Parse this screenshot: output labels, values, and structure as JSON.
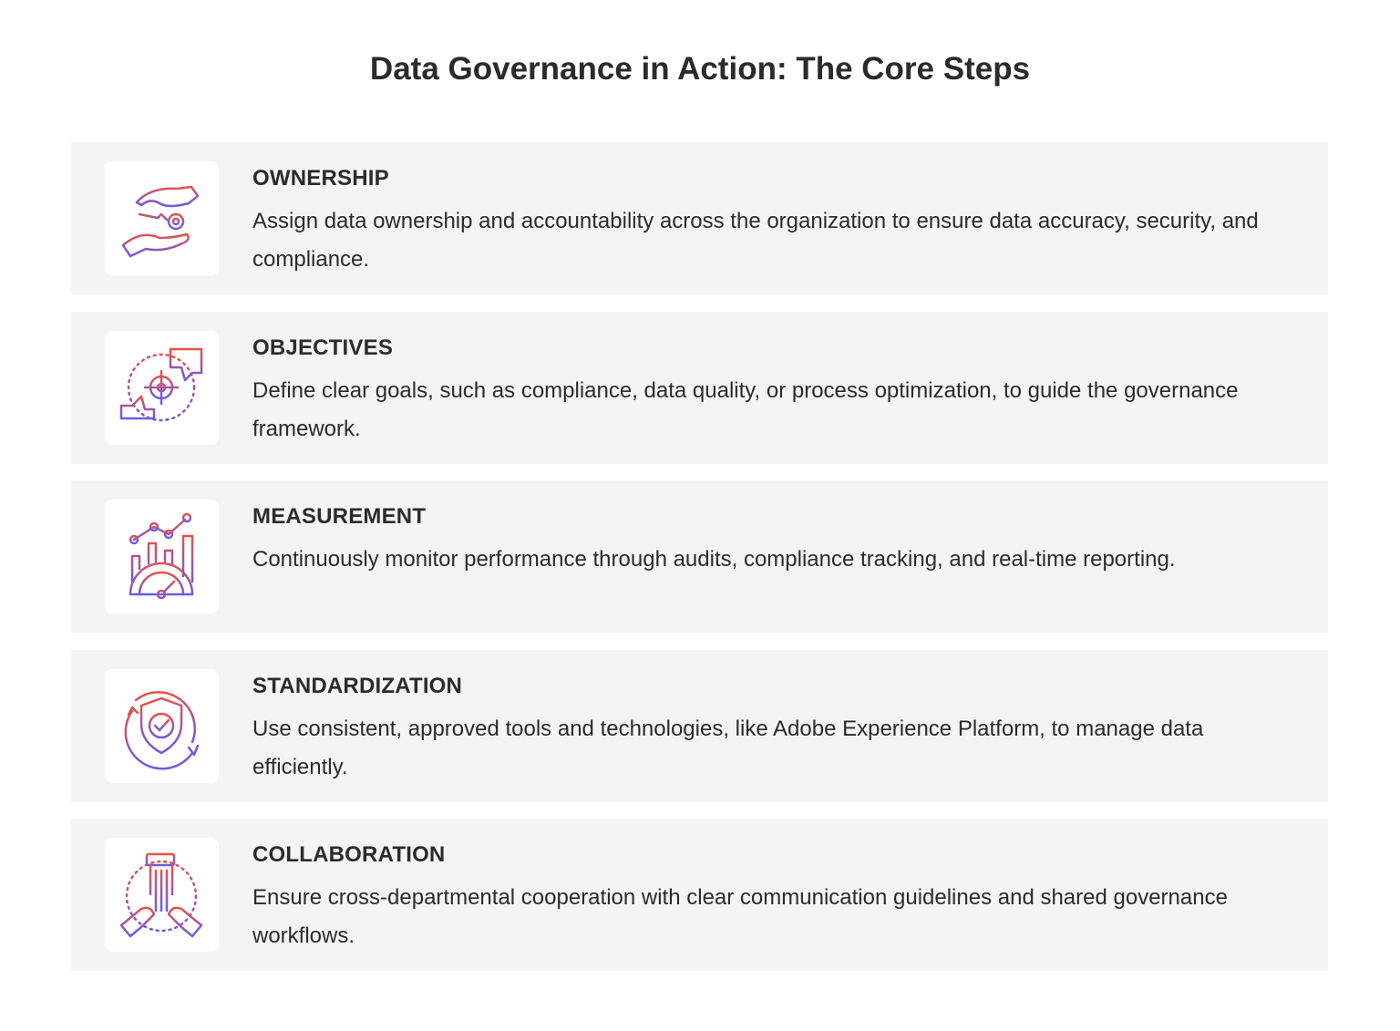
{
  "title": "Data Governance in Action: The Core Steps",
  "colors": {
    "gradient_start": "#e5534b",
    "gradient_end": "#6b5ce7",
    "card_bg": "#f4f4f4"
  },
  "steps": [
    {
      "title": "OWNERSHIP",
      "icon": "hands-key-icon",
      "description": "Assign data ownership and accountability across the organization to ensure data accuracy, security, and compliance."
    },
    {
      "title": "OBJECTIVES",
      "icon": "target-hands-icon",
      "description": "Define clear goals, such as compliance, data quality, or process optimization, to guide the governance framework."
    },
    {
      "title": "MEASUREMENT",
      "icon": "chart-gauge-icon",
      "description": "Continuously monitor performance through audits, compliance tracking, and real-time reporting."
    },
    {
      "title": "STANDARDIZATION",
      "icon": "shield-check-icon",
      "description": "Use consistent, approved tools and technologies, like Adobe Experience Platform, to manage data efficiently."
    },
    {
      "title": "COLLABORATION",
      "icon": "joined-hands-icon",
      "description": "Ensure cross-departmental cooperation with clear communication guidelines and shared governance workflows."
    }
  ]
}
